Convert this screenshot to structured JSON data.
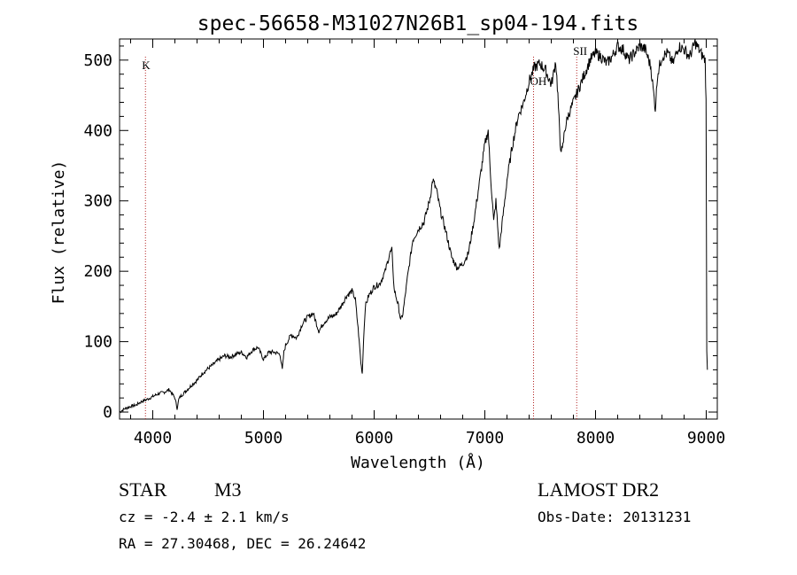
{
  "chart_data": {
    "type": "line",
    "title": "spec-56658-M31027N26B1_sp04-194.fits",
    "xlabel": "Wavelength (Å)",
    "ylabel": "Flux (relative)",
    "xlim": [
      3700,
      9100
    ],
    "ylim": [
      -10,
      530
    ],
    "xticks": [
      4000,
      5000,
      6000,
      7000,
      8000,
      9000
    ],
    "yticks": [
      0,
      100,
      200,
      300,
      400,
      500
    ],
    "grid": false,
    "line_color": "#000000",
    "marker_color": "#b22222",
    "line_markers": [
      {
        "label": "K",
        "x": 3934
      },
      {
        "label": "OH",
        "x": 7440
      },
      {
        "label": "SII",
        "x": 7830
      }
    ],
    "series": [
      {
        "x": [
          3700,
          3750,
          3800,
          3850,
          3900,
          3950,
          4000,
          4050,
          4100,
          4150,
          4200,
          4220,
          4235,
          4250,
          4300,
          4350,
          4400,
          4450,
          4500,
          4550,
          4600,
          4650,
          4700,
          4750,
          4800,
          4850,
          4900,
          4950,
          5000,
          5050,
          5100,
          5150,
          5170,
          5185,
          5200,
          5250,
          5300,
          5350,
          5400,
          5450,
          5500,
          5550,
          5600,
          5650,
          5700,
          5750,
          5800,
          5830,
          5860,
          5880,
          5893,
          5905,
          5920,
          5950,
          6000,
          6050,
          6100,
          6140,
          6160,
          6180,
          6220,
          6240,
          6260,
          6300,
          6350,
          6400,
          6450,
          6500,
          6530,
          6563,
          6600,
          6650,
          6700,
          6750,
          6800,
          6850,
          6900,
          6950,
          7000,
          7030,
          7050,
          7080,
          7100,
          7130,
          7150,
          7180,
          7200,
          7250,
          7300,
          7350,
          7400,
          7450,
          7500,
          7550,
          7600,
          7620,
          7640,
          7660,
          7680,
          7700,
          7720,
          7750,
          7800,
          7850,
          7900,
          7950,
          8000,
          8050,
          8100,
          8150,
          8200,
          8250,
          8300,
          8350,
          8400,
          8450,
          8500,
          8540,
          8560,
          8600,
          8650,
          8700,
          8750,
          8800,
          8850,
          8900,
          8950,
          8990,
          8998,
          9005,
          9010
        ],
        "y": [
          0,
          5,
          8,
          10,
          15,
          18,
          22,
          26,
          28,
          32,
          20,
          5,
          18,
          22,
          30,
          38,
          45,
          55,
          62,
          68,
          75,
          80,
          78,
          82,
          85,
          78,
          88,
          92,
          75,
          85,
          85,
          82,
          60,
          85,
          95,
          110,
          105,
          125,
          135,
          140,
          115,
          128,
          135,
          138,
          150,
          165,
          172,
          160,
          110,
          70,
          55,
          105,
          150,
          165,
          178,
          182,
          200,
          225,
          230,
          175,
          150,
          130,
          140,
          190,
          245,
          260,
          270,
          300,
          330,
          315,
          285,
          255,
          220,
          205,
          210,
          225,
          270,
          325,
          380,
          400,
          340,
          270,
          300,
          230,
          260,
          300,
          330,
          380,
          420,
          440,
          470,
          490,
          495,
          485,
          465,
          480,
          500,
          450,
          380,
          370,
          400,
          420,
          440,
          460,
          480,
          500,
          510,
          505,
          495,
          505,
          520,
          515,
          500,
          510,
          520,
          515,
          490,
          430,
          480,
          505,
          510,
          495,
          520,
          515,
          505,
          525,
          510,
          500,
          440,
          90,
          60
        ]
      }
    ]
  },
  "footer": {
    "object_class": "STAR",
    "subclass": "M3",
    "cz": "cz = -2.4 ± 2.1 km/s",
    "radec": "RA =  27.30468, DEC =  26.24642",
    "survey": "LAMOST DR2",
    "obs_date": "Obs-Date: 20131231"
  }
}
